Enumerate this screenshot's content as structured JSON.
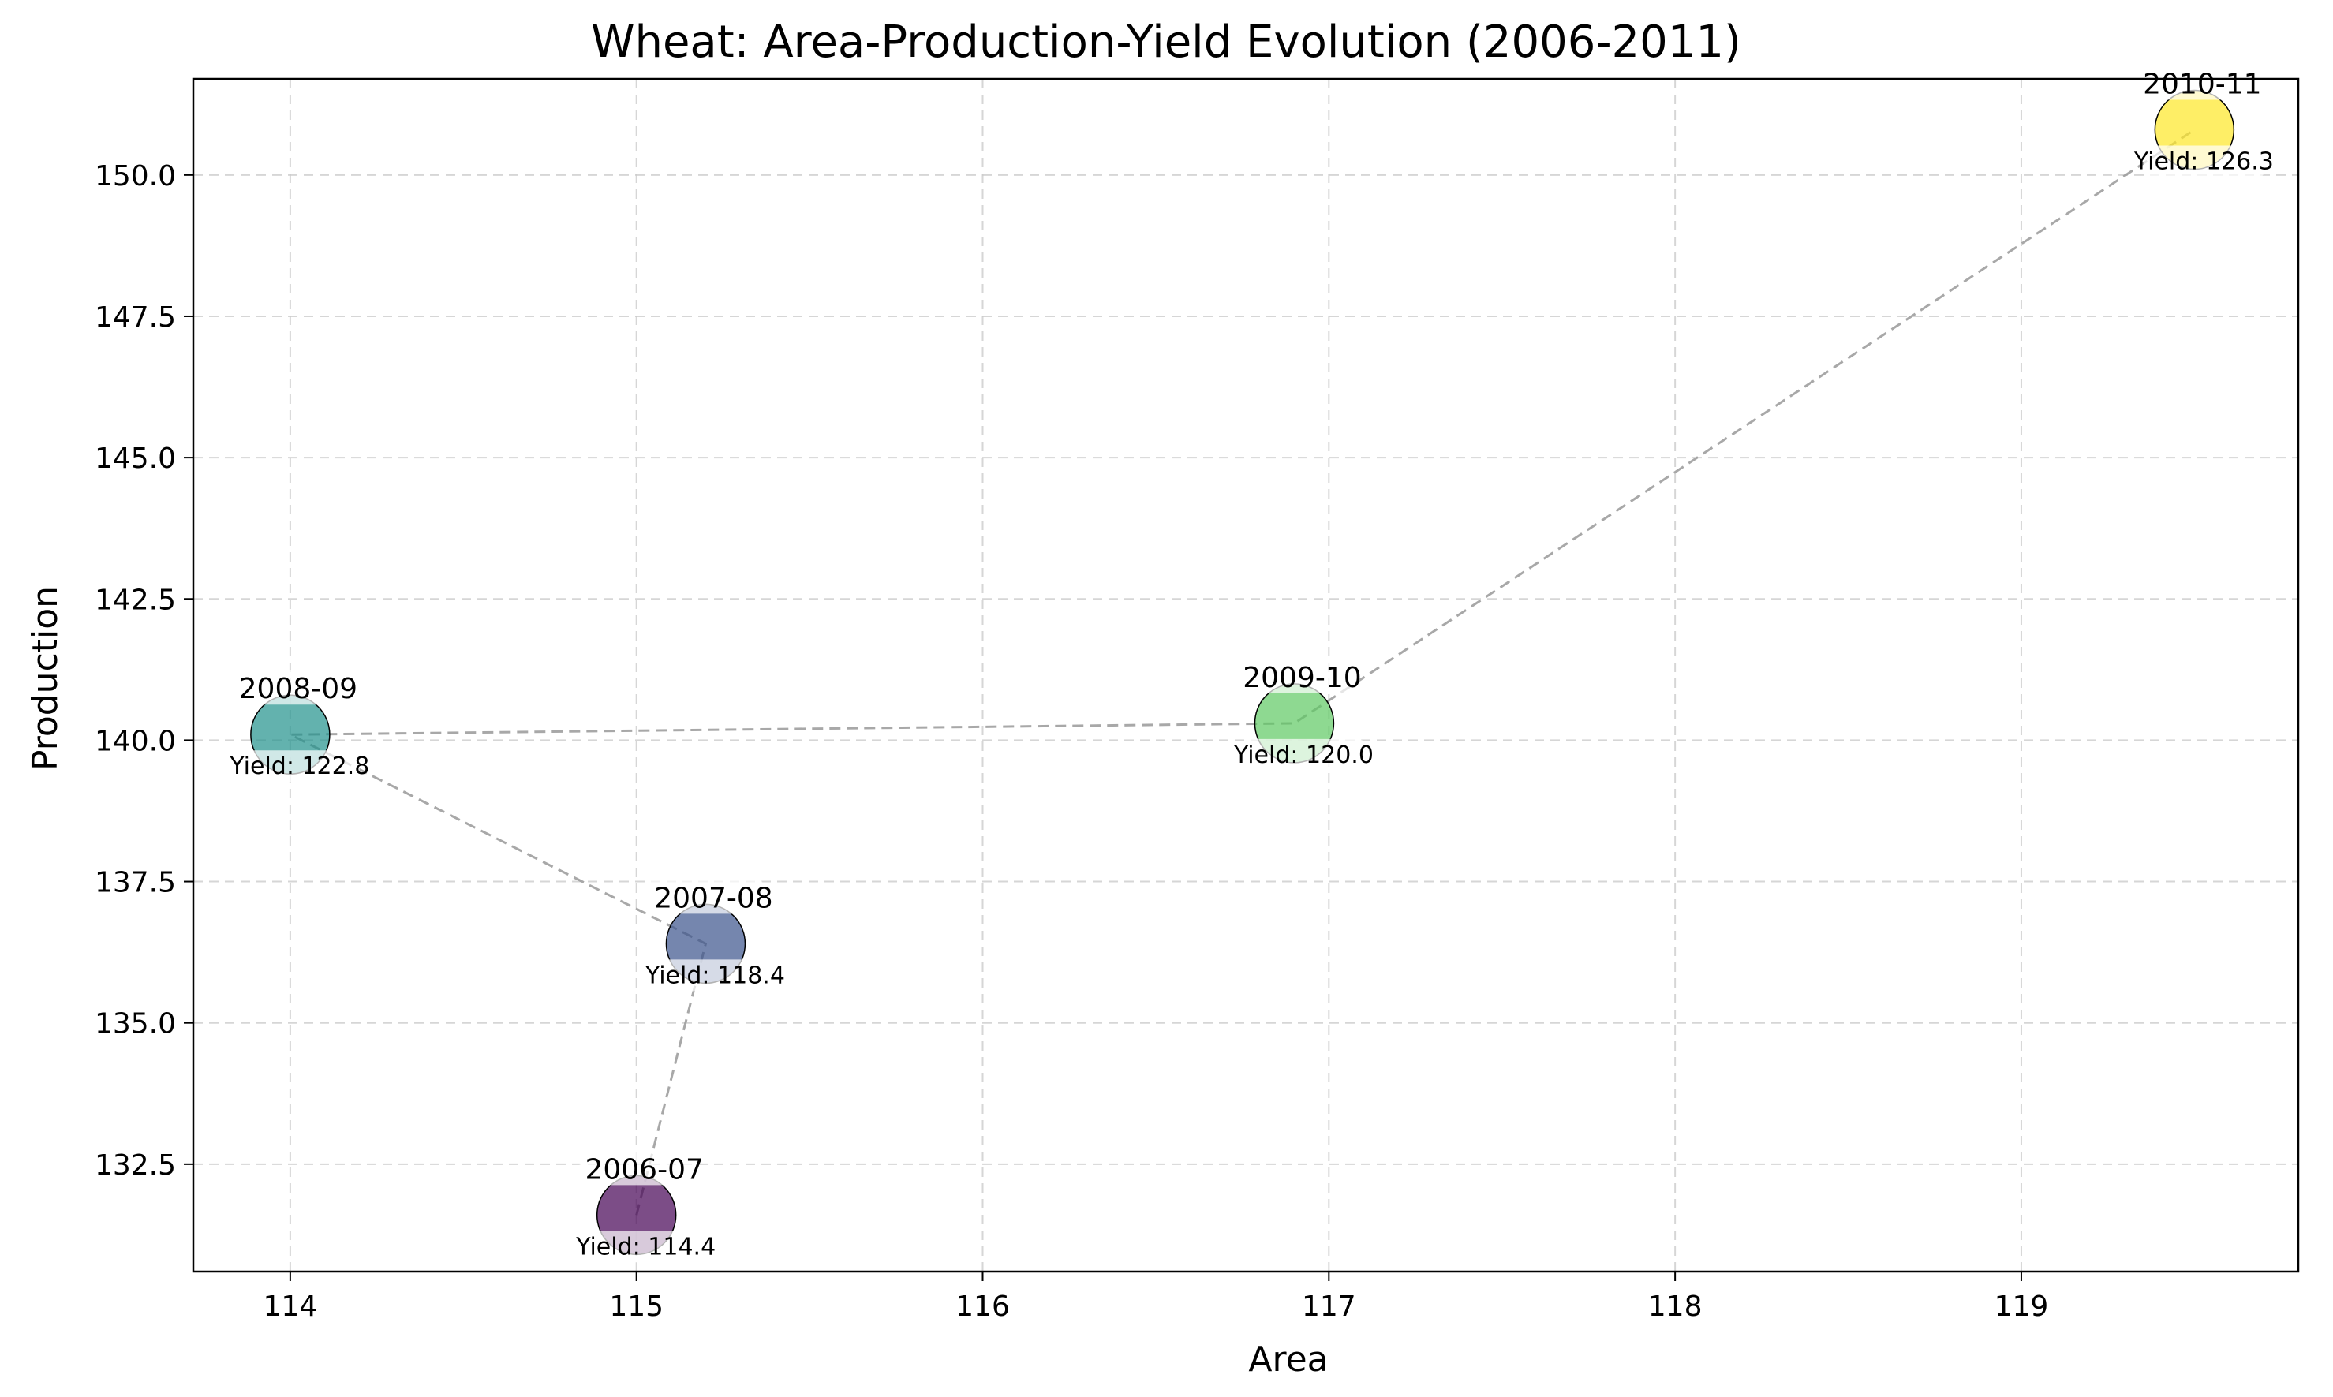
{
  "chart_data": {
    "type": "scatter",
    "title": "Wheat: Area-Production-Yield Evolution (2006-2011)",
    "xlabel": "Area",
    "ylabel": "Production",
    "xlim": [
      113.72,
      119.8
    ],
    "ylim": [
      130.6,
      151.7
    ],
    "xticks": [
      114,
      115,
      116,
      117,
      118,
      119
    ],
    "xtick_labels": [
      "114",
      "115",
      "116",
      "117",
      "118",
      "119"
    ],
    "yticks": [
      132.5,
      135.0,
      137.5,
      140.0,
      142.5,
      145.0,
      147.5,
      150.0
    ],
    "ytick_labels": [
      "132.5",
      "135.0",
      "137.5",
      "140.0",
      "142.5",
      "145.0",
      "147.5",
      "150.0"
    ],
    "grid": true,
    "connector": "dashed",
    "points": [
      {
        "label": "2006-07",
        "x": 115.0,
        "y": 131.6,
        "yield": 114.4,
        "yield_label": "Yield: 114.4",
        "color": "#440154"
      },
      {
        "label": "2007-08",
        "x": 115.2,
        "y": 136.4,
        "yield": 118.4,
        "yield_label": "Yield: 118.4",
        "color": "#3b528b"
      },
      {
        "label": "2008-09",
        "x": 114.0,
        "y": 140.1,
        "yield": 122.8,
        "yield_label": "Yield: 122.8",
        "color": "#21918c"
      },
      {
        "label": "2009-10",
        "x": 116.9,
        "y": 140.3,
        "yield": 120.0,
        "yield_label": "Yield: 120.0",
        "color": "#5ec962"
      },
      {
        "label": "2010-11",
        "x": 119.5,
        "y": 150.8,
        "yield": 126.3,
        "yield_label": "Yield: 126.3",
        "color": "#fde725"
      }
    ]
  }
}
